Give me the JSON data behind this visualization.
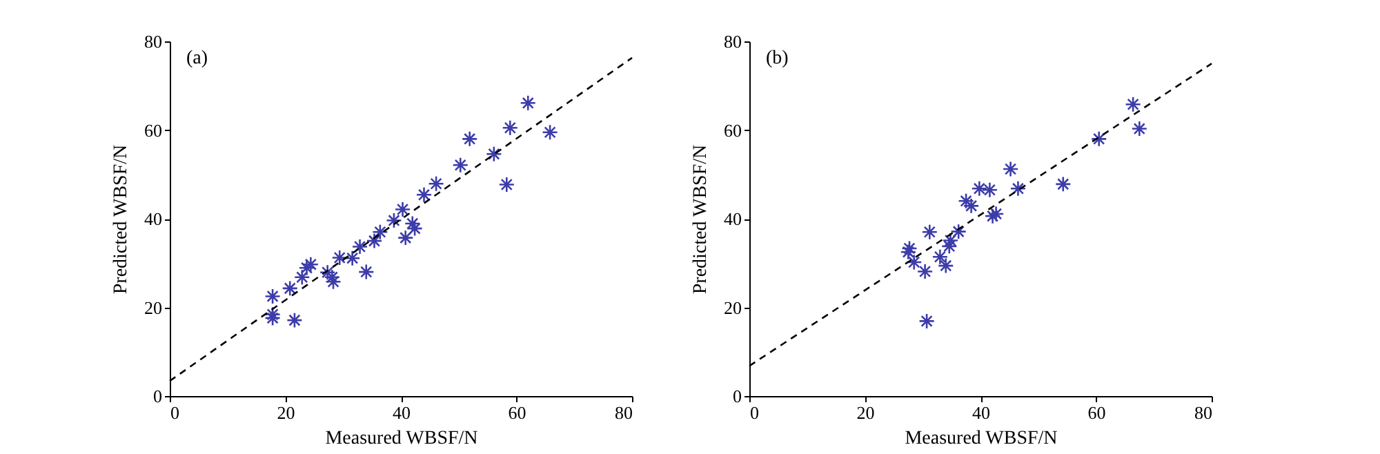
{
  "chart_data": [
    {
      "type": "scatter",
      "xlabel": "Measured WBSF/N",
      "ylabel": "Predicted WBSF/N",
      "annotations": [
        "(a)"
      ],
      "marker": "cross",
      "grid": false,
      "xlim": [
        0,
        80
      ],
      "ylim": [
        0,
        80
      ],
      "xticks": [
        0,
        20,
        40,
        60,
        80
      ],
      "yticks": [
        0,
        20,
        40,
        60,
        80
      ],
      "series": [
        {
          "color": "#3c3caa",
          "x": [
            17.8,
            17.8,
            17.8,
            21.6,
            20.8,
            22.9,
            23.7,
            24.4,
            27.3,
            28.1,
            28.3,
            29.4,
            31.6,
            32.9,
            34.0,
            35.4,
            36.4,
            38.8,
            40.3,
            40.8,
            42.0,
            42.4,
            44.0,
            46.1,
            50.3,
            51.9,
            56.1,
            58.3,
            58.9,
            62.0,
            65.8
          ],
          "values": [
            22.5,
            18.4,
            17.6,
            17.1,
            24.3,
            26.8,
            28.9,
            29.7,
            27.9,
            26.8,
            25.8,
            31.2,
            31.1,
            33.7,
            28.0,
            35.0,
            37.0,
            39.6,
            42.1,
            35.7,
            38.9,
            37.8,
            45.4,
            47.9,
            52.1,
            58.0,
            54.6,
            47.7,
            60.5,
            66.1,
            59.5
          ]
        },
        {
          "type": "line",
          "line_style": "dashed",
          "marker": "none",
          "color": "#000000",
          "x": [
            0,
            80
          ],
          "values": [
            3.4,
            76.3
          ]
        }
      ]
    },
    {
      "type": "scatter",
      "xlabel": "Measured WBSF/N",
      "ylabel": "Predicted WBSF/N",
      "annotations": [
        "(b)"
      ],
      "marker": "cross",
      "grid": false,
      "xlim": [
        0,
        80
      ],
      "ylim": [
        0,
        80
      ],
      "xticks": [
        0,
        20,
        40,
        60,
        80
      ],
      "yticks": [
        0,
        20,
        40,
        60,
        80
      ],
      "series": [
        {
          "color": "#3c3caa",
          "x": [
            27.7,
            27.5,
            28.5,
            30.4,
            30.7,
            31.2,
            33.0,
            34.0,
            34.6,
            34.8,
            36.2,
            37.5,
            38.4,
            39.8,
            41.6,
            42.1,
            42.7,
            45.2,
            46.5,
            54.3,
            60.5,
            66.4,
            67.5
          ],
          "values": [
            33.3,
            32.5,
            30.2,
            28.1,
            16.9,
            37.0,
            31.4,
            29.4,
            33.8,
            35.1,
            37.1,
            44.0,
            42.9,
            46.8,
            46.5,
            40.6,
            41.1,
            51.2,
            46.8,
            47.8,
            58.0,
            65.8,
            60.3
          ]
        },
        {
          "type": "line",
          "line_style": "dashed",
          "marker": "none",
          "color": "#000000",
          "x": [
            0,
            80
          ],
          "values": [
            6.8,
            75.0
          ]
        }
      ]
    }
  ]
}
